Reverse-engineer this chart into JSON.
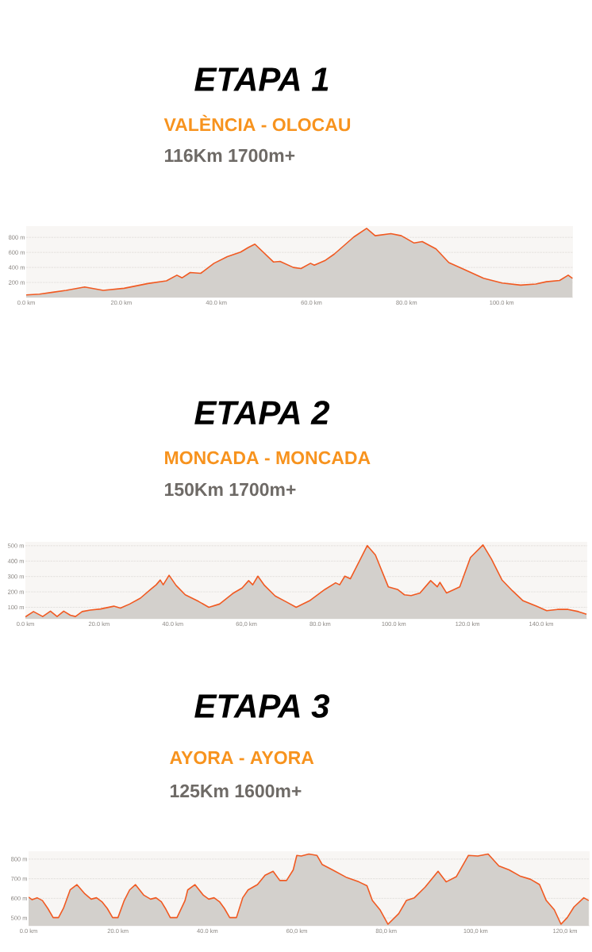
{
  "chart_data": [
    {
      "type": "area",
      "title": "ETAPA 1",
      "subtitle": "VALÈNCIA - OLOCAU",
      "annotations": [
        "116Km 1700m+"
      ],
      "grid": "y",
      "x": [
        0,
        2.8,
        5.6,
        8.4,
        12.3,
        16.2,
        20.6,
        25.6,
        29.5,
        31.7,
        32.8,
        34.5,
        36.7,
        39.5,
        42.3,
        45.1,
        46.7,
        48.1,
        52.0,
        53.4,
        56.2,
        57.8,
        59.8,
        60.6,
        62.8,
        64.8,
        68.9,
        71.6,
        73.4,
        76.7,
        78.9,
        81.6,
        83.3,
        86.2,
        88.9,
        91.7,
        96.2,
        100.1,
        104,
        107.2,
        109.4,
        112.2,
        114,
        114.9
      ],
      "series": [
        {
          "color": "#f15a22",
          "values": [
            35,
            45,
            70,
            95,
            140,
            95,
            123,
            186,
            221,
            297,
            262,
            333,
            322,
            455,
            543,
            605,
            665,
            710,
            473,
            480,
            400,
            385,
            455,
            430,
            490,
            578,
            805,
            920,
            822,
            850,
            822,
            725,
            745,
            647,
            465,
            385,
            255,
            192,
            165,
            180,
            210,
            227,
            297,
            255
          ]
        }
      ],
      "xlim": [
        0,
        115
      ],
      "ylim": [
        0,
        950
      ],
      "xticks": [
        {
          "value": 0,
          "label": "0.0 km"
        },
        {
          "value": 20,
          "label": "20.0 km"
        },
        {
          "value": 40,
          "label": "40.0 km"
        },
        {
          "value": 60,
          "label": "60.0 km"
        },
        {
          "value": 80,
          "label": "80.0 km"
        },
        {
          "value": 100,
          "label": "100.0 km"
        }
      ],
      "yticks": [
        {
          "value": 200,
          "label": "200 m"
        },
        {
          "value": 400,
          "label": "400 m"
        },
        {
          "value": 600,
          "label": "600 m"
        },
        {
          "value": 800,
          "label": "800 m"
        }
      ]
    },
    {
      "type": "area",
      "title": "ETAPA 2",
      "subtitle": "MONCADA - MONCADA",
      "annotations": [
        "150Km 1700m+"
      ],
      "grid": "y",
      "x": [
        0,
        2.2,
        4.7,
        6.8,
        8.6,
        10.4,
        12.2,
        13.6,
        15.4,
        17.6,
        20.4,
        24,
        25.8,
        28.3,
        31.2,
        34,
        35.5,
        36.6,
        37.4,
        39,
        40.9,
        43.4,
        47,
        49.8,
        52.7,
        56.3,
        58.8,
        60.6,
        61.7,
        63.1,
        64.9,
        67.8,
        70.6,
        73.5,
        77.1,
        81.3,
        84.2,
        85.3,
        86.7,
        88.2,
        92.8,
        95,
        98.5,
        101,
        102.9,
        104.7,
        107.1,
        110,
        111.8,
        112.5,
        114.3,
        117.9,
        120.8,
        124.2,
        126.5,
        129.4,
        132.2,
        135.1,
        138.7,
        141.5,
        144.4,
        147.3,
        150.1,
        152.3
      ],
      "series": [
        {
          "color": "#f15a22",
          "values": [
            38,
            72,
            40,
            75,
            40,
            75,
            48,
            40,
            72,
            82,
            89,
            107,
            95,
            121,
            159,
            216,
            246,
            277,
            246,
            308,
            242,
            181,
            138,
            100,
            121,
            190,
            225,
            273,
            246,
            302,
            242,
            173,
            138,
            100,
            142,
            216,
            259,
            246,
            302,
            285,
            501,
            440,
            233,
            216,
            181,
            176,
            193,
            273,
            233,
            262,
            193,
            233,
            423,
            505,
            414,
            276,
            207,
            142,
            107,
            78,
            86,
            86,
            72,
            55
          ]
        }
      ],
      "xlim": [
        0,
        152.5
      ],
      "ylim": [
        25,
        525
      ],
      "xticks": [
        {
          "value": 0,
          "label": "0.0 km"
        },
        {
          "value": 20,
          "label": "20.0 km"
        },
        {
          "value": 40,
          "label": "40.0 km"
        },
        {
          "value": 60,
          "label": "60,0 km"
        },
        {
          "value": 80,
          "label": "80.0 km"
        },
        {
          "value": 100,
          "label": "100.0 km"
        },
        {
          "value": 120,
          "label": "120.0 km"
        },
        {
          "value": 140,
          "label": "140.0 km"
        }
      ],
      "yticks": [
        {
          "value": 100,
          "label": "100 m"
        },
        {
          "value": 200,
          "label": "200 m"
        },
        {
          "value": 300,
          "label": "300 m"
        },
        {
          "value": 400,
          "label": "400 m"
        },
        {
          "value": 500,
          "label": "500 m"
        }
      ]
    },
    {
      "type": "area",
      "title": "ETAPA 3",
      "subtitle": "AYORA - AYORA",
      "annotations": [
        "125Km 1600m+"
      ],
      "grid": "y",
      "x": [
        0,
        0.8,
        1.9,
        3.1,
        4.3,
        5.5,
        6.7,
        7.8,
        9.3,
        10.8,
        12.6,
        14,
        15.2,
        16.4,
        17.6,
        18.8,
        20,
        21.4,
        22.6,
        23.9,
        25.8,
        27.3,
        28.5,
        29.7,
        30.6,
        31.7,
        33.2,
        35,
        35.6,
        37.2,
        39.1,
        40.3,
        41.5,
        42.7,
        43.8,
        45,
        46.5,
        47.9,
        49.1,
        51.2,
        52.9,
        54.7,
        56.2,
        57.7,
        59.2,
        60,
        61,
        62.7,
        64.5,
        65.7,
        68,
        71,
        73.9,
        75.7,
        76.9,
        78.6,
        80.4,
        82.8,
        84.5,
        86.3,
        88.7,
        91.6,
        93.4,
        95.7,
        98.4,
        100.5,
        102.8,
        105.2,
        107.5,
        109.9,
        112.3,
        114.3,
        115.8,
        117.6,
        119.1,
        120.5,
        122,
        124.2,
        125.3
      ],
      "series": [
        {
          "color": "#f15a22",
          "values": [
            606,
            593,
            603,
            589,
            549,
            502,
            502,
            549,
            643,
            670,
            623,
            596,
            603,
            583,
            549,
            502,
            502,
            589,
            643,
            670,
            616,
            596,
            603,
            583,
            549,
            502,
            502,
            589,
            643,
            670,
            616,
            596,
            603,
            583,
            549,
            502,
            502,
            603,
            643,
            670,
            718,
            738,
            691,
            691,
            745,
            819,
            816,
            826,
            819,
            772,
            745,
            708,
            684,
            664,
            589,
            542,
            468,
            522,
            589,
            603,
            657,
            738,
            684,
            711,
            819,
            816,
            826,
            765,
            745,
            714,
            697,
            670,
            589,
            542,
            468,
            502,
            556,
            603,
            589
          ]
        }
      ],
      "xlim": [
        0,
        125.5
      ],
      "ylim": [
        460,
        840
      ],
      "xticks": [
        {
          "value": 0,
          "label": "0.0 km"
        },
        {
          "value": 20,
          "label": "20.0 km"
        },
        {
          "value": 40,
          "label": "40.0 km"
        },
        {
          "value": 60,
          "label": "60,0 km"
        },
        {
          "value": 80,
          "label": "80,0 km"
        },
        {
          "value": 100,
          "label": "100,0 km"
        },
        {
          "value": 120,
          "label": "120,0 km"
        }
      ],
      "yticks": [
        {
          "value": 500,
          "label": "500 m"
        },
        {
          "value": 600,
          "label": "600 m"
        },
        {
          "value": 700,
          "label": "700 m"
        },
        {
          "value": 800,
          "label": "800 m"
        }
      ]
    }
  ]
}
